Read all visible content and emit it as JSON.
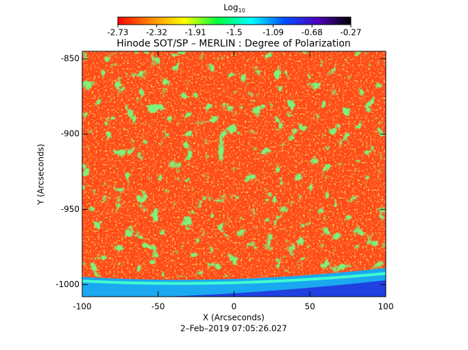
{
  "chart_data": {
    "type": "image",
    "title": "Hinode SOT/SP – MERLIN : Degree of Polarization",
    "footer": "2–Feb–2019 07:05:26.027",
    "x_label": "X (Arcseconds)",
    "y_label": "Y (Arcseconds)",
    "xlim": [
      -100,
      100
    ],
    "xticks": [
      -100,
      -50,
      0,
      50,
      100
    ],
    "ylim": [
      -1008,
      -845
    ],
    "yticks": [
      -850,
      -900,
      -950,
      -1000
    ],
    "colorbar": {
      "label": "Log",
      "label_subscript": "10",
      "lim": [
        -2.73,
        -0.27
      ],
      "ticks": [
        -2.73,
        -2.32,
        -1.91,
        -1.5,
        -1.09,
        -0.68,
        -0.27
      ],
      "colors": [
        "#ff0000",
        "#ff8c00",
        "#ffff00",
        "#00ff40",
        "#00ffff",
        "#0050ff",
        "#5000c0",
        "#000000"
      ]
    }
  }
}
